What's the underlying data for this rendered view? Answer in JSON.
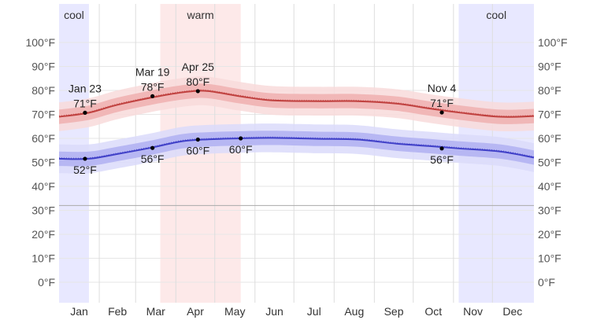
{
  "chart_data": {
    "type": "line",
    "title": "",
    "xlabel": "",
    "ylabel": "",
    "x_range_days": [
      0,
      366
    ],
    "ylim": [
      -10,
      110
    ],
    "grid": true,
    "y_ticks": [
      {
        "value": 0,
        "label": "0°F"
      },
      {
        "value": 10,
        "label": "10°F"
      },
      {
        "value": 20,
        "label": "20°F"
      },
      {
        "value": 30,
        "label": "30°F"
      },
      {
        "value": 40,
        "label": "40°F"
      },
      {
        "value": 50,
        "label": "50°F"
      },
      {
        "value": 60,
        "label": "60°F"
      },
      {
        "value": 70,
        "label": "70°F"
      },
      {
        "value": 80,
        "label": "80°F"
      },
      {
        "value": 90,
        "label": "90°F"
      },
      {
        "value": 100,
        "label": "100°F"
      }
    ],
    "freezing_line": 32,
    "months": [
      {
        "label": "Jan",
        "start": 0,
        "end": 31
      },
      {
        "label": "Feb",
        "start": 31,
        "end": 59
      },
      {
        "label": "Mar",
        "start": 59,
        "end": 90
      },
      {
        "label": "Apr",
        "start": 90,
        "end": 120
      },
      {
        "label": "May",
        "start": 120,
        "end": 151
      },
      {
        "label": "Jun",
        "start": 151,
        "end": 181
      },
      {
        "label": "Jul",
        "start": 181,
        "end": 212
      },
      {
        "label": "Aug",
        "start": 212,
        "end": 243
      },
      {
        "label": "Sep",
        "start": 243,
        "end": 273
      },
      {
        "label": "Oct",
        "start": 273,
        "end": 304
      },
      {
        "label": "Nov",
        "start": 304,
        "end": 334
      },
      {
        "label": "Dec",
        "start": 334,
        "end": 365
      }
    ],
    "seasons": [
      {
        "label": "cool",
        "start": 0,
        "end": 23,
        "color": "#e8e8ff"
      },
      {
        "label": "warm",
        "start": 78,
        "end": 140,
        "color": "#fde9e9"
      },
      {
        "label": "cool",
        "start": 308,
        "end": 366,
        "color": "#e8e8ff"
      }
    ],
    "series": [
      {
        "color": "#c0413f",
        "band_inner": "#efb3b3",
        "band_outer": "#f8dada",
        "points": [
          [
            0,
            69
          ],
          [
            23,
            70.7
          ],
          [
            45,
            74
          ],
          [
            78,
            77.7
          ],
          [
            100,
            79.5
          ],
          [
            115,
            79.7
          ],
          [
            140,
            77.5
          ],
          [
            165,
            75.8
          ],
          [
            200,
            75.5
          ],
          [
            230,
            75.5
          ],
          [
            260,
            74.5
          ],
          [
            285,
            72.5
          ],
          [
            308,
            70.8
          ],
          [
            340,
            69
          ],
          [
            366,
            69.3
          ]
        ]
      },
      {
        "color": "#4040c8",
        "band_inner": "#b3b3f2",
        "band_outer": "#dadafa",
        "points": [
          [
            0,
            51.5
          ],
          [
            23,
            51.5
          ],
          [
            45,
            53.5
          ],
          [
            70,
            56
          ],
          [
            95,
            58.8
          ],
          [
            115,
            59.6
          ],
          [
            140,
            60
          ],
          [
            165,
            60.2
          ],
          [
            200,
            59.8
          ],
          [
            230,
            59.5
          ],
          [
            260,
            57.8
          ],
          [
            285,
            56.8
          ],
          [
            308,
            55.8
          ],
          [
            340,
            54.5
          ],
          [
            366,
            52
          ]
        ]
      }
    ],
    "annotations": [
      {
        "x": 20,
        "y": 70.7,
        "date": "Jan 23",
        "value": "71°F",
        "pos": "above"
      },
      {
        "x": 20,
        "y": 51.5,
        "date": "",
        "value": "52°F",
        "pos": "below"
      },
      {
        "x": 72,
        "y": 77.6,
        "date": "Mar 19",
        "value": "78°F",
        "pos": "above"
      },
      {
        "x": 72,
        "y": 56,
        "date": "",
        "value": "56°F",
        "pos": "below"
      },
      {
        "x": 107,
        "y": 79.7,
        "date": "Apr 25",
        "value": "80°F",
        "pos": "above"
      },
      {
        "x": 107,
        "y": 59.5,
        "date": "",
        "value": "60°F",
        "pos": "below"
      },
      {
        "x": 140,
        "y": 60,
        "date": "",
        "value": "60°F",
        "pos": "below"
      },
      {
        "x": 295,
        "y": 70.8,
        "date": "Nov 4",
        "value": "71°F",
        "pos": "above"
      },
      {
        "x": 295,
        "y": 55.8,
        "date": "",
        "value": "56°F",
        "pos": "below"
      }
    ]
  }
}
